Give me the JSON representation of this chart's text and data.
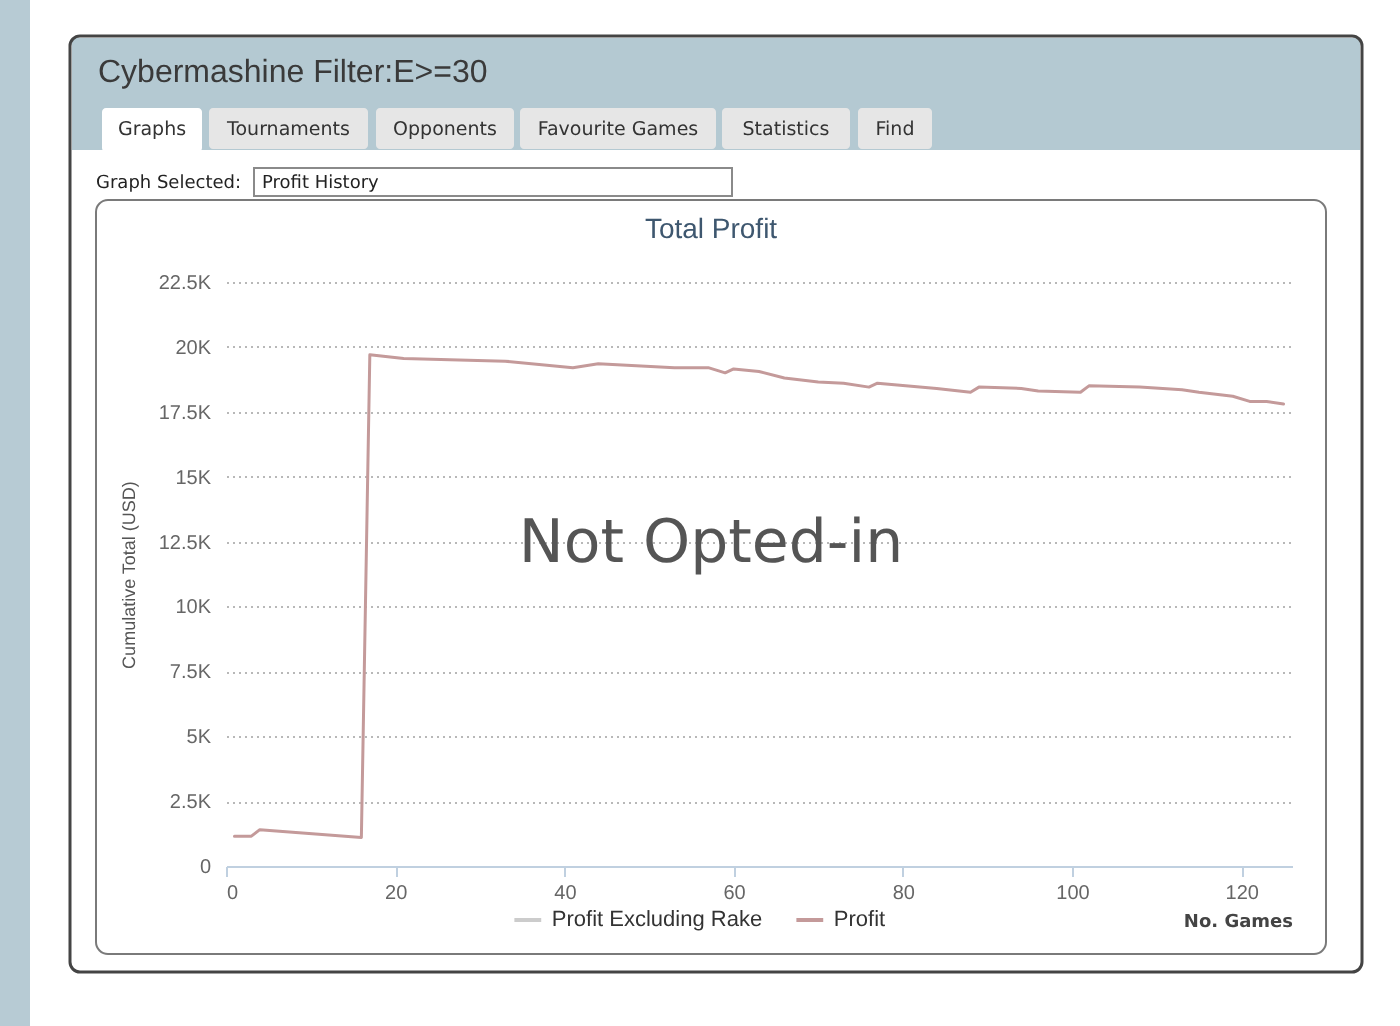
{
  "chart_data": {
    "type": "line",
    "title": "Total Profit",
    "xlabel": "No. Games",
    "ylabel": "Cumulative Total (USD)",
    "x": [
      1,
      3,
      4,
      16,
      17,
      21,
      33,
      41,
      44,
      53,
      57,
      59,
      60,
      63,
      66,
      70,
      73,
      76,
      77,
      84,
      88,
      89,
      94,
      96,
      101,
      102,
      108,
      113,
      115,
      119,
      121,
      123,
      125
    ],
    "series": [
      {
        "name": "Profit Excluding Rake",
        "color": "#cccccc",
        "values": [
          null,
          null,
          null,
          null,
          null,
          null,
          null,
          null,
          null,
          null,
          null,
          null,
          null,
          null,
          null,
          null,
          null,
          null,
          null,
          null,
          null,
          null,
          null,
          null,
          null,
          null,
          null,
          null,
          null,
          null,
          null,
          null,
          null
        ]
      },
      {
        "name": "Profit",
        "color": "#c49a9a",
        "values": [
          1150,
          1150,
          1400,
          1100,
          19700,
          19550,
          19450,
          19200,
          19350,
          19200,
          19200,
          19000,
          19150,
          19050,
          18800,
          18650,
          18600,
          18450,
          18600,
          18400,
          18250,
          18450,
          18400,
          18300,
          18250,
          18500,
          18450,
          18350,
          18250,
          18100,
          17900,
          17900,
          17800
        ]
      }
    ],
    "xlim": [
      0,
      126
    ],
    "xticks": [
      0,
      20,
      40,
      60,
      80,
      100,
      120
    ],
    "ylim": [
      0,
      22500
    ],
    "yticks": [
      0,
      {
        "value": 2500,
        "label": "2.5K"
      },
      {
        "value": 5000,
        "label": "5K"
      },
      {
        "value": 7500,
        "label": "7.5K"
      },
      {
        "value": 10000,
        "label": "10K"
      },
      {
        "value": 12500,
        "label": "12.5K"
      },
      {
        "value": 15000,
        "label": "15K"
      },
      {
        "value": 17500,
        "label": "17.5K"
      },
      {
        "value": 20000,
        "label": "20K"
      },
      {
        "value": 22500,
        "label": "22.5K"
      }
    ],
    "grid": "y",
    "legend": "bottom",
    "annotations": [
      "Not Opted-in",
      "Cybermashine Filter:E>=30",
      "Graphs",
      "Tournaments",
      "Opponents",
      "Favourite Games",
      "Statistics",
      "Find",
      "Graph Selected:",
      "Profit History"
    ]
  }
}
